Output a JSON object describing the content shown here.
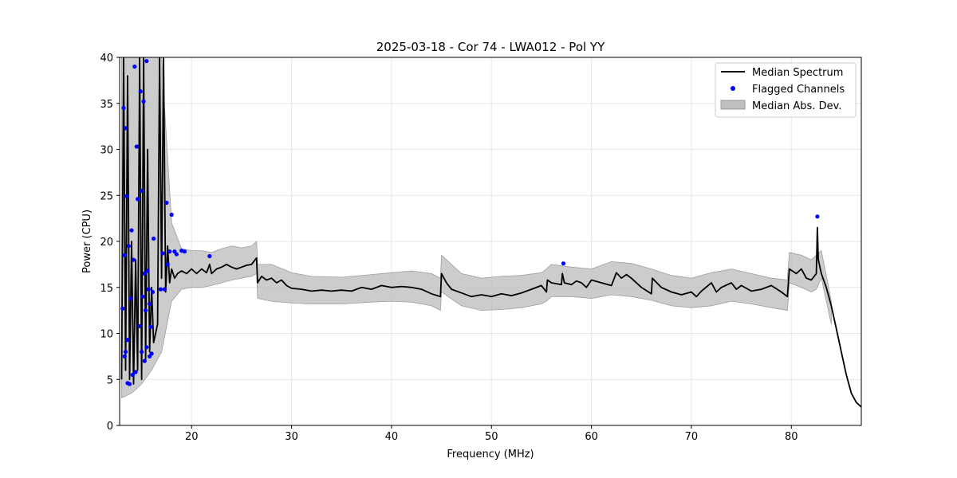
{
  "chart_data": {
    "type": "line",
    "title": "2025-03-18 - Cor 74 - LWA012 - Pol YY",
    "xlabel": "Frequency (MHz)",
    "ylabel": "Power (CPU)",
    "xlim": [
      12.8,
      87.0
    ],
    "ylim": [
      0,
      40
    ],
    "xticks": [
      20,
      30,
      40,
      50,
      60,
      70,
      80
    ],
    "yticks": [
      0,
      5,
      10,
      15,
      20,
      25,
      30,
      35,
      40
    ],
    "grid": true,
    "legend_position": "top-right",
    "colors": {
      "median": "#000000",
      "flagged": "#0000ff",
      "mad_fill": "#bfbfbf"
    },
    "series": [
      {
        "name": "Median Spectrum",
        "kind": "line",
        "x": [
          13.0,
          13.2,
          13.4,
          13.6,
          13.8,
          14.0,
          14.2,
          14.4,
          14.6,
          14.8,
          15.0,
          15.2,
          15.4,
          15.6,
          15.8,
          16.0,
          16.2,
          16.4,
          16.6,
          16.8,
          17.0,
          17.2,
          17.4,
          17.6,
          17.8,
          18.0,
          18.3,
          18.6,
          19.0,
          19.5,
          20.0,
          20.5,
          21.0,
          21.5,
          21.8,
          22.0,
          22.5,
          23.0,
          23.5,
          24.0,
          24.5,
          25.0,
          25.5,
          26.0,
          26.5,
          26.6,
          27.0,
          27.5,
          28.0,
          28.5,
          29.0,
          29.5,
          30.0,
          31.0,
          32.0,
          33.0,
          34.0,
          35.0,
          36.0,
          37.0,
          38.0,
          39.0,
          40.0,
          41.0,
          42.0,
          43.0,
          44.0,
          44.9,
          45.0,
          45.5,
          46.0,
          47.0,
          48.0,
          49.0,
          50.0,
          51.0,
          52.0,
          53.0,
          54.0,
          55.0,
          55.5,
          55.6,
          56.0,
          57.0,
          57.1,
          57.3,
          58.0,
          58.5,
          59.0,
          59.5,
          60.0,
          61.0,
          62.0,
          62.5,
          63.0,
          63.5,
          64.0,
          65.0,
          66.0,
          66.1,
          67.0,
          68.0,
          69.0,
          70.0,
          70.5,
          71.0,
          72.0,
          72.5,
          73.0,
          74.0,
          74.5,
          75.0,
          76.0,
          77.0,
          78.0,
          79.0,
          79.6,
          79.8,
          80.5,
          81.0,
          81.5,
          82.0,
          82.5,
          82.6,
          82.7,
          83.0,
          83.5,
          84.0,
          84.5,
          85.0,
          85.5,
          86.0,
          86.5,
          87.0
        ],
        "y": [
          5.0,
          40.0,
          6.0,
          38.0,
          5.0,
          20.0,
          4.5,
          18.0,
          6.0,
          40.0,
          5.0,
          40.0,
          7.0,
          30.0,
          8.0,
          15.0,
          9.0,
          10.0,
          11.0,
          40.0,
          16.0,
          40.0,
          14.5,
          19.5,
          15.5,
          17.0,
          16.0,
          16.5,
          16.8,
          16.5,
          17.0,
          16.5,
          17.0,
          16.6,
          17.5,
          16.5,
          17.0,
          17.2,
          17.5,
          17.2,
          17.0,
          17.2,
          17.4,
          17.5,
          18.2,
          15.5,
          16.2,
          15.8,
          16.0,
          15.5,
          15.8,
          15.2,
          14.9,
          14.8,
          14.6,
          14.7,
          14.6,
          14.7,
          14.6,
          15.0,
          14.8,
          15.2,
          15.0,
          15.1,
          15.0,
          14.8,
          14.3,
          14.0,
          16.5,
          15.5,
          14.8,
          14.4,
          14.0,
          14.2,
          14.0,
          14.3,
          14.1,
          14.4,
          14.8,
          15.2,
          14.5,
          15.8,
          15.5,
          15.3,
          16.5,
          15.5,
          15.3,
          15.7,
          15.5,
          15.0,
          15.8,
          15.5,
          15.2,
          16.6,
          16.0,
          16.4,
          16.0,
          15.0,
          14.3,
          16.0,
          15.0,
          14.5,
          14.2,
          14.5,
          14.0,
          14.6,
          15.5,
          14.5,
          15.0,
          15.5,
          14.8,
          15.2,
          14.6,
          14.8,
          15.2,
          14.5,
          14.0,
          17.0,
          16.5,
          17.0,
          16.0,
          15.8,
          16.5,
          21.5,
          18.0,
          16.5,
          15.0,
          13.0,
          10.5,
          8.0,
          5.5,
          3.5,
          2.5,
          2.0
        ]
      },
      {
        "name": "Flagged Channels",
        "kind": "scatter",
        "x": [
          13.1,
          13.2,
          13.3,
          13.3,
          13.4,
          13.4,
          13.5,
          13.6,
          13.6,
          13.7,
          13.8,
          13.9,
          14.0,
          14.1,
          14.2,
          14.3,
          14.4,
          14.5,
          14.6,
          14.8,
          14.9,
          15.0,
          15.0,
          15.1,
          15.2,
          15.3,
          15.3,
          15.4,
          15.5,
          15.5,
          15.6,
          15.7,
          15.8,
          15.8,
          15.9,
          16.0,
          16.1,
          16.2,
          16.9,
          17.1,
          17.3,
          17.5,
          17.6,
          17.8,
          18.0,
          18.3,
          18.5,
          19.0,
          19.3,
          21.8,
          57.2,
          82.6
        ],
        "y": [
          12.7,
          34.5,
          7.5,
          18.5,
          32.3,
          8.0,
          24.9,
          4.6,
          9.3,
          19.5,
          4.5,
          13.8,
          21.2,
          5.5,
          18.0,
          39.0,
          5.8,
          30.3,
          24.6,
          10.8,
          36.3,
          8.0,
          25.5,
          14.0,
          35.2,
          16.5,
          7.0,
          12.5,
          39.6,
          8.5,
          16.8,
          14.8,
          13.2,
          7.5,
          10.7,
          7.8,
          14.5,
          20.3,
          14.8,
          18.7,
          14.8,
          24.2,
          17.5,
          18.9,
          22.9,
          18.9,
          18.6,
          19.0,
          18.9,
          18.4,
          17.6,
          22.7
        ]
      },
      {
        "name": "Median Abs. Dev.",
        "kind": "band",
        "x": [
          13.0,
          14.0,
          15.0,
          16.0,
          17.0,
          18.0,
          19.0,
          20.0,
          21.0,
          22.0,
          23.0,
          24.0,
          25.0,
          26.0,
          26.5,
          26.6,
          28.0,
          30.0,
          32.0,
          35.0,
          38.0,
          40.0,
          42.0,
          44.0,
          44.9,
          45.0,
          47.0,
          49.0,
          51.0,
          53.0,
          55.0,
          55.5,
          56.0,
          58.0,
          60.0,
          62.0,
          64.0,
          66.0,
          68.0,
          70.0,
          72.0,
          74.0,
          76.0,
          78.0,
          79.6,
          79.8,
          81.0,
          82.0,
          82.5,
          83.0,
          84.0
        ],
        "lower": [
          3.0,
          3.5,
          4.5,
          6.0,
          8.0,
          13.5,
          14.8,
          15.0,
          15.0,
          15.2,
          15.5,
          15.8,
          16.0,
          16.2,
          16.5,
          13.8,
          13.5,
          13.3,
          13.2,
          13.2,
          13.4,
          13.5,
          13.4,
          13.0,
          12.5,
          14.5,
          13.0,
          12.5,
          12.6,
          12.8,
          13.2,
          13.5,
          14.0,
          14.0,
          13.8,
          14.2,
          14.0,
          13.6,
          13.0,
          12.8,
          13.0,
          13.5,
          13.2,
          12.8,
          12.5,
          15.5,
          15.0,
          14.5,
          14.8,
          16.0,
          11.0
        ],
        "upper": [
          40.0,
          40.0,
          40.0,
          40.0,
          40.0,
          22.0,
          19.2,
          19.0,
          19.0,
          18.8,
          19.2,
          19.5,
          19.3,
          19.5,
          20.0,
          17.5,
          17.5,
          16.6,
          16.2,
          16.1,
          16.4,
          16.6,
          16.8,
          16.5,
          16.0,
          18.5,
          16.5,
          16.0,
          16.2,
          16.3,
          16.6,
          17.0,
          17.5,
          17.2,
          17.0,
          17.8,
          17.6,
          17.0,
          16.3,
          16.0,
          16.6,
          17.0,
          16.5,
          16.0,
          15.8,
          18.8,
          18.5,
          18.0,
          18.5,
          19.0,
          13.5
        ]
      }
    ]
  }
}
